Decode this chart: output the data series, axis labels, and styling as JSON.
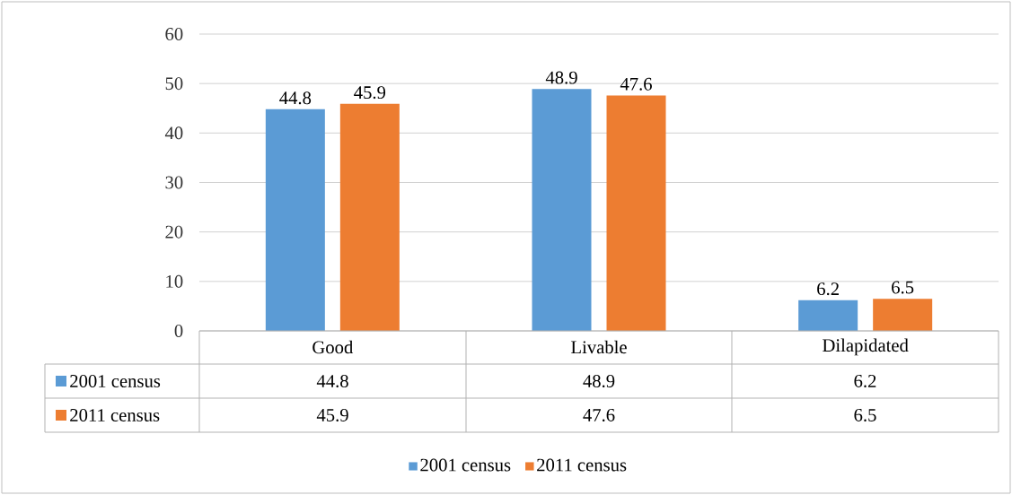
{
  "chart_data": {
    "type": "bar",
    "categories": [
      "Good",
      "Livable",
      "Dilapidated"
    ],
    "series": [
      {
        "name": "2001 census",
        "color": "#5b9bd5",
        "values": [
          44.8,
          48.9,
          6.2
        ],
        "value_labels": [
          "44.8",
          "48.9",
          "6.2"
        ]
      },
      {
        "name": "2011 census",
        "color": "#ed7d31",
        "values": [
          45.9,
          47.6,
          6.5
        ],
        "value_labels": [
          "45.9",
          "47.6",
          "6.5"
        ]
      }
    ],
    "ylim": [
      0,
      60
    ],
    "yticks": [
      0,
      10,
      20,
      30,
      40,
      50,
      60
    ],
    "grid": "y",
    "data_labels": true,
    "legend": "bottom"
  }
}
